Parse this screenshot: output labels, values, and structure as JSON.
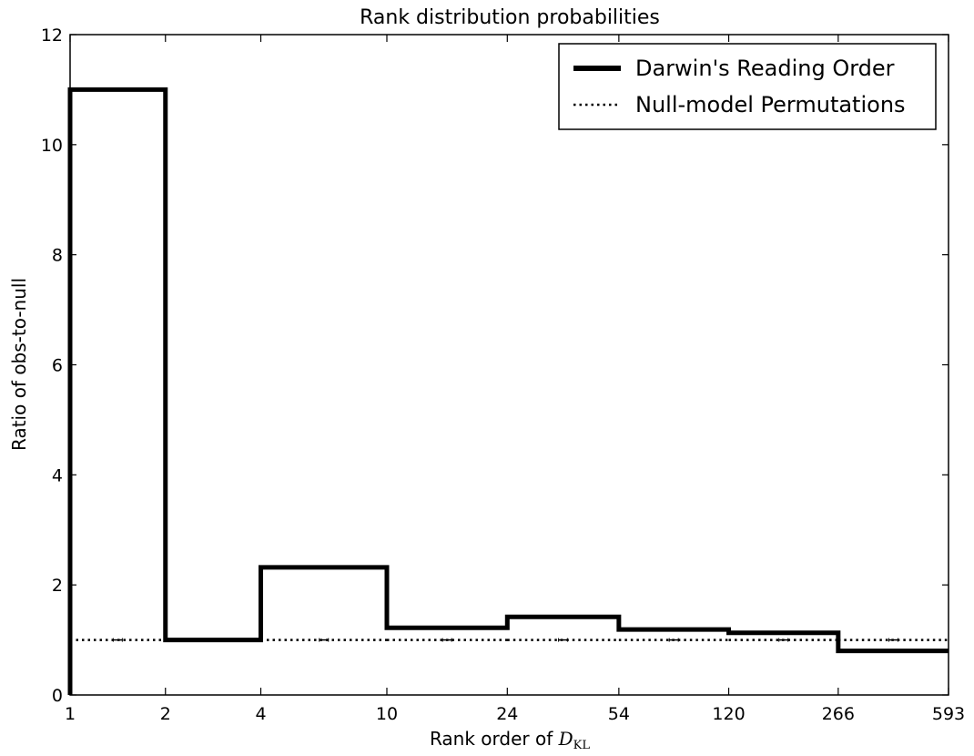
{
  "chart_data": {
    "type": "line",
    "title": "Rank distribution probabilities",
    "xlabel": "Rank order of ",
    "xlabel_math": "D",
    "xlabel_math_sub": "KL",
    "ylabel": "Ratio of obs-to-null",
    "x_scale": "log",
    "xlim": [
      1,
      593
    ],
    "ylim": [
      0,
      12
    ],
    "x_ticks": [
      1,
      2,
      4,
      10,
      24,
      54,
      120,
      266,
      593
    ],
    "x_tick_labels": [
      "1",
      "2",
      "4",
      "10",
      "24",
      "54",
      "120",
      "266",
      "593"
    ],
    "y_ticks": [
      0,
      2,
      4,
      6,
      8,
      10,
      12
    ],
    "y_tick_labels": [
      "0",
      "2",
      "4",
      "6",
      "8",
      "10",
      "12"
    ],
    "bin_edges": [
      1,
      2,
      4,
      10,
      24,
      54,
      120,
      266,
      593
    ],
    "series": [
      {
        "name": "Darwin's Reading Order",
        "style": "solid",
        "step_values": [
          11.0,
          1.0,
          2.32,
          1.22,
          1.42,
          1.19,
          1.13,
          0.8
        ]
      },
      {
        "name": "Null-model Permutations",
        "style": "dotted",
        "step_values": [
          1.0,
          1.0,
          1.0,
          1.0,
          1.0,
          1.0,
          1.0,
          1.0
        ]
      }
    ],
    "legend_position": "upper right",
    "grid": false
  },
  "colors": {
    "line": "#000000",
    "background": "#ffffff"
  }
}
